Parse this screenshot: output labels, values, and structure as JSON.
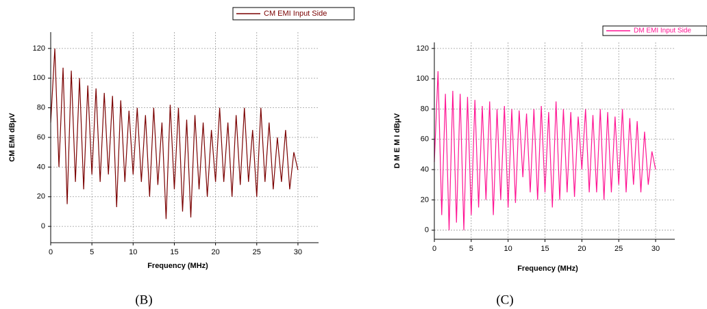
{
  "chart_data": [
    {
      "type": "line",
      "caption": "(B)",
      "x_label": "Frequency (MHz)",
      "y_label": "CM EMI dBμV",
      "legend": "top",
      "grid": true,
      "xlim": [
        0,
        32.5
      ],
      "ylim": [
        -11,
        131
      ],
      "xticks": [
        0,
        5,
        10,
        15,
        20,
        25,
        30
      ],
      "yticks": [
        0,
        20,
        40,
        60,
        80,
        100,
        120
      ],
      "x": [
        0,
        0.5,
        1,
        1.5,
        2,
        2.5,
        3,
        3.5,
        4,
        4.5,
        5,
        5.5,
        6,
        6.5,
        7,
        7.5,
        8,
        8.5,
        9,
        9.5,
        10,
        10.5,
        11,
        11.5,
        12,
        12.5,
        13,
        13.5,
        14,
        14.5,
        15,
        15.5,
        16,
        16.5,
        17,
        17.5,
        18,
        18.5,
        19,
        19.5,
        20,
        20.5,
        21,
        21.5,
        22,
        22.5,
        23,
        23.5,
        24,
        24.5,
        25,
        25.5,
        26,
        26.5,
        27,
        27.5,
        28,
        28.5,
        29,
        29.5,
        30
      ],
      "series": [
        {
          "name": "CM EMI Input Side",
          "color": "#7a0000",
          "values": [
            70,
            120,
            40,
            107,
            15,
            105,
            30,
            100,
            25,
            95,
            35,
            93,
            30,
            90,
            35,
            88,
            13,
            85,
            30,
            78,
            35,
            80,
            30,
            75,
            20,
            80,
            28,
            70,
            5,
            82,
            25,
            80,
            10,
            72,
            6,
            75,
            25,
            70,
            20,
            65,
            30,
            80,
            30,
            70,
            20,
            75,
            28,
            80,
            30,
            65,
            20,
            80,
            30,
            70,
            25,
            60,
            30,
            65,
            25,
            50,
            38
          ]
        }
      ]
    },
    {
      "type": "line",
      "caption": "(C)",
      "x_label": "Frequency (MHz)",
      "y_label": "D M E M I dBμV",
      "legend": "top-right",
      "grid": true,
      "xlim": [
        0,
        32.6
      ],
      "ylim": [
        -6,
        124
      ],
      "xticks": [
        0,
        5,
        10,
        15,
        20,
        25,
        30
      ],
      "yticks": [
        0,
        20,
        40,
        60,
        80,
        100,
        120
      ],
      "x": [
        0,
        0.5,
        1,
        1.5,
        2,
        2.5,
        3,
        3.5,
        4,
        4.5,
        5,
        5.5,
        6,
        6.5,
        7,
        7.5,
        8,
        8.5,
        9,
        9.5,
        10,
        10.5,
        11,
        11.5,
        12,
        12.5,
        13,
        13.5,
        14,
        14.5,
        15,
        15.5,
        16,
        16.5,
        17,
        17.5,
        18,
        18.5,
        19,
        19.5,
        20,
        20.5,
        21,
        21.5,
        22,
        22.5,
        23,
        23.5,
        24,
        24.5,
        25,
        25.5,
        26,
        26.5,
        27,
        27.5,
        28,
        28.5,
        29,
        29.5,
        30
      ],
      "series": [
        {
          "name": "DM EMI Input Side",
          "color": "#ff1493",
          "values": [
            45,
            105,
            10,
            90,
            0,
            92,
            5,
            90,
            0,
            88,
            10,
            86,
            15,
            82,
            20,
            85,
            10,
            80,
            20,
            82,
            15,
            80,
            18,
            79,
            35,
            77,
            25,
            80,
            20,
            82,
            25,
            78,
            15,
            85,
            20,
            80,
            25,
            78,
            22,
            75,
            40,
            80,
            25,
            76,
            25,
            80,
            20,
            78,
            25,
            75,
            30,
            80,
            25,
            74,
            30,
            72,
            25,
            65,
            30,
            52,
            40
          ]
        }
      ]
    }
  ]
}
